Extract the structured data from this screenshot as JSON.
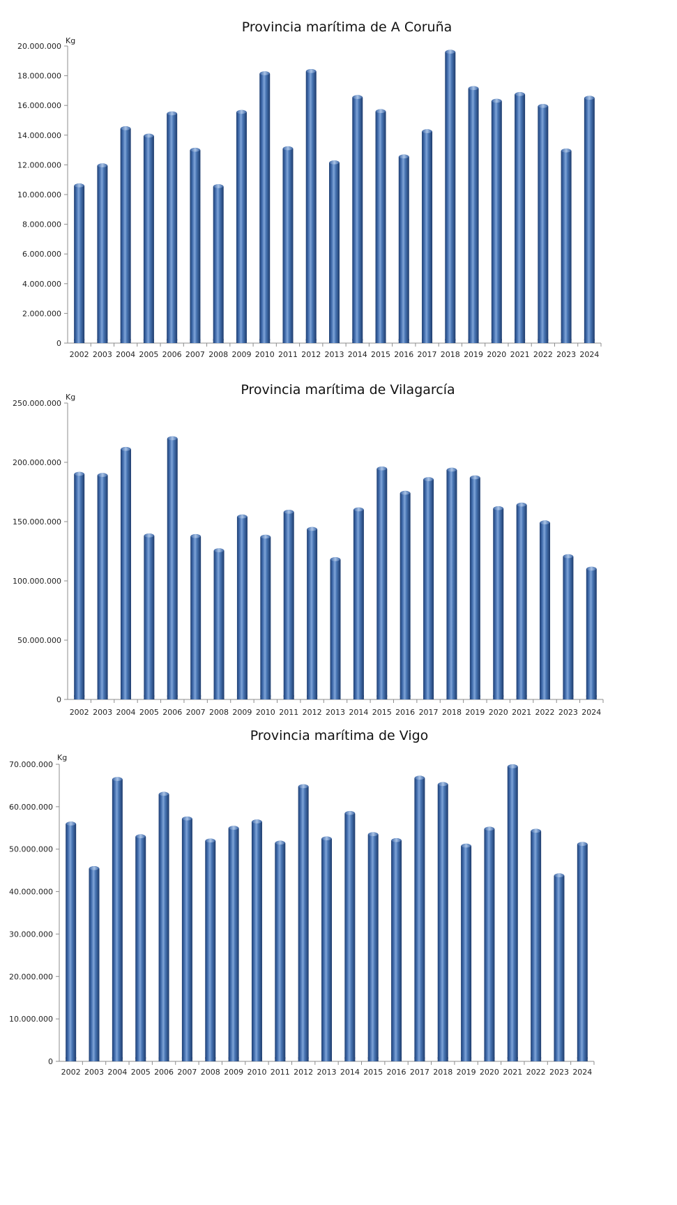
{
  "chart_data": [
    {
      "type": "bar",
      "title": "Provincia marítima de A Coruña",
      "ylabel": "Kg",
      "xlabel": "",
      "grid": false,
      "color": "#4a77b5",
      "ylim": [
        0,
        20000000
      ],
      "yticks": [
        "0",
        "2.000.000",
        "4.000.000",
        "6.000.000",
        "8.000.000",
        "10.000.000",
        "12.000.000",
        "14.000.000",
        "16.000.000",
        "18.000.000",
        "20.000.000"
      ],
      "categories": [
        "2002",
        "2003",
        "2004",
        "2005",
        "2006",
        "2007",
        "2008",
        "2009",
        "2010",
        "2011",
        "2012",
        "2013",
        "2014",
        "2015",
        "2016",
        "2017",
        "2018",
        "2019",
        "2020",
        "2021",
        "2022",
        "2023",
        "2024"
      ],
      "values": [
        10750000,
        12100000,
        14600000,
        14100000,
        15600000,
        13150000,
        10700000,
        15700000,
        18300000,
        13250000,
        18450000,
        12300000,
        16700000,
        15750000,
        12700000,
        14400000,
        19750000,
        17300000,
        16450000,
        16900000,
        16100000,
        13100000,
        16650000
      ]
    },
    {
      "type": "bar",
      "title": "Provincia marítima de Vilagarcía",
      "ylabel": "Kg",
      "xlabel": "",
      "grid": false,
      "color": "#4a77b5",
      "ylim": [
        0,
        250000000
      ],
      "yticks": [
        "0",
        "50.000.000",
        "100.000.000",
        "150.000.000",
        "200.000.000",
        "250.000.000"
      ],
      "categories": [
        "2002",
        "2003",
        "2004",
        "2005",
        "2006",
        "2007",
        "2008",
        "2009",
        "2010",
        "2011",
        "2012",
        "2013",
        "2014",
        "2015",
        "2016",
        "2017",
        "2018",
        "2019",
        "2020",
        "2021",
        "2022",
        "2023",
        "2024"
      ],
      "values": [
        192000000,
        191000000,
        213000000,
        140000000,
        222000000,
        139500000,
        127500000,
        156000000,
        139000000,
        160000000,
        145500000,
        120000000,
        162000000,
        196500000,
        176000000,
        187500000,
        195500000,
        189000000,
        163000000,
        166000000,
        151000000,
        122500000,
        112000000
      ]
    },
    {
      "type": "bar",
      "title": "Provincia marítima de Vigo",
      "ylabel": "Kg",
      "xlabel": "",
      "grid": false,
      "color": "#4a77b5",
      "ylim": [
        0,
        70000000
      ],
      "yticks": [
        "0",
        "10.000.000",
        "20.000.000",
        "30.000.000",
        "40.000.000",
        "50.000.000",
        "60.000.000",
        "70.000.000"
      ],
      "categories": [
        "2002",
        "2003",
        "2004",
        "2005",
        "2006",
        "2007",
        "2008",
        "2009",
        "2010",
        "2011",
        "2012",
        "2013",
        "2014",
        "2015",
        "2016",
        "2017",
        "2018",
        "2019",
        "2020",
        "2021",
        "2022",
        "2023",
        "2024"
      ],
      "values": [
        56500000,
        46000000,
        67000000,
        53500000,
        63500000,
        57700000,
        52500000,
        55500000,
        57000000,
        52000000,
        65300000,
        53000000,
        59000000,
        54000000,
        52600000,
        67300000,
        65800000,
        51300000,
        55300000,
        70000000,
        54800000,
        44300000,
        51700000
      ]
    }
  ]
}
